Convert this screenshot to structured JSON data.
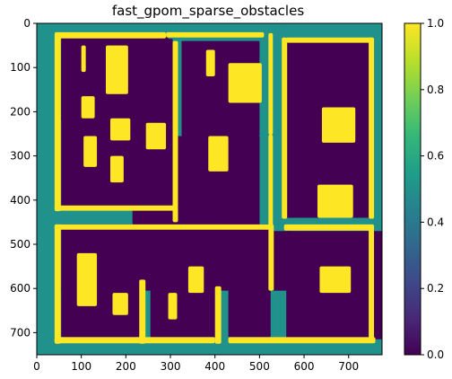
{
  "chart_data": {
    "type": "heatmap",
    "title": "fast_gpom_sparse_obstacles",
    "xlabel": "",
    "ylabel": "",
    "xlim": [
      0,
      775
    ],
    "ylim": [
      750,
      0
    ],
    "x_ticks": [
      0,
      100,
      200,
      300,
      400,
      500,
      600,
      700
    ],
    "y_ticks": [
      0,
      100,
      200,
      300,
      400,
      500,
      600,
      700
    ],
    "colormap": "viridis",
    "vmin": 0.0,
    "vmax": 1.0,
    "colorbar_ticks": [
      "0.0",
      "0.2",
      "0.4",
      "0.6",
      "0.8",
      "1.0"
    ],
    "value_levels": {
      "free": 0.0,
      "unknown": 0.5,
      "occupied": 1.0
    },
    "colors": {
      "free": "#440154",
      "unknown": "#21918c",
      "occupied": "#fde725"
    },
    "regions": {
      "free": [
        {
          "x": 55,
          "y": 22,
          "w": 240,
          "h": 195
        },
        {
          "x": 55,
          "y": 210,
          "w": 200,
          "h": 210
        },
        {
          "x": 215,
          "y": 210,
          "w": 90,
          "h": 245
        },
        {
          "x": 55,
          "y": 35,
          "w": 250,
          "h": 185
        },
        {
          "x": 325,
          "y": 40,
          "w": 175,
          "h": 215
        },
        {
          "x": 215,
          "y": 255,
          "w": 285,
          "h": 200
        },
        {
          "x": 325,
          "y": 255,
          "w": 175,
          "h": 200
        },
        {
          "x": 55,
          "y": 455,
          "w": 470,
          "h": 150
        },
        {
          "x": 55,
          "y": 595,
          "w": 180,
          "h": 115
        },
        {
          "x": 255,
          "y": 595,
          "w": 150,
          "h": 115
        },
        {
          "x": 430,
          "y": 455,
          "w": 95,
          "h": 255
        },
        {
          "x": 560,
          "y": 470,
          "w": 220,
          "h": 245
        },
        {
          "x": 520,
          "y": 470,
          "w": 55,
          "h": 135
        },
        {
          "x": 560,
          "y": 40,
          "w": 195,
          "h": 400
        }
      ],
      "occupied": [
        {
          "x": 40,
          "y": 20,
          "w": 250,
          "h": 14
        },
        {
          "x": 290,
          "y": 20,
          "w": 220,
          "h": 12
        },
        {
          "x": 520,
          "y": 22,
          "w": 10,
          "h": 230
        },
        {
          "x": 560,
          "y": 32,
          "w": 195,
          "h": 12
        },
        {
          "x": 550,
          "y": 32,
          "w": 12,
          "h": 410
        },
        {
          "x": 745,
          "y": 32,
          "w": 12,
          "h": 410
        },
        {
          "x": 305,
          "y": 40,
          "w": 12,
          "h": 410
        },
        {
          "x": 40,
          "y": 30,
          "w": 14,
          "h": 395
        },
        {
          "x": 40,
          "y": 412,
          "w": 275,
          "h": 12
        },
        {
          "x": 520,
          "y": 252,
          "w": 10,
          "h": 210
        },
        {
          "x": 40,
          "y": 455,
          "w": 490,
          "h": 12
        },
        {
          "x": 40,
          "y": 455,
          "w": 14,
          "h": 270
        },
        {
          "x": 40,
          "y": 710,
          "w": 360,
          "h": 14
        },
        {
          "x": 430,
          "y": 710,
          "w": 330,
          "h": 14
        },
        {
          "x": 555,
          "y": 455,
          "w": 200,
          "h": 14
        },
        {
          "x": 745,
          "y": 455,
          "w": 12,
          "h": 260
        },
        {
          "x": 400,
          "y": 595,
          "w": 14,
          "h": 130
        },
        {
          "x": 230,
          "y": 580,
          "w": 14,
          "h": 145
        },
        {
          "x": 520,
          "y": 455,
          "w": 12,
          "h": 150
        },
        {
          "x": 100,
          "y": 50,
          "w": 10,
          "h": 60
        },
        {
          "x": 155,
          "y": 50,
          "w": 50,
          "h": 110
        },
        {
          "x": 380,
          "y": 60,
          "w": 20,
          "h": 60
        },
        {
          "x": 430,
          "y": 90,
          "w": 75,
          "h": 90
        },
        {
          "x": 100,
          "y": 165,
          "w": 30,
          "h": 50
        },
        {
          "x": 165,
          "y": 215,
          "w": 45,
          "h": 50
        },
        {
          "x": 105,
          "y": 255,
          "w": 30,
          "h": 70
        },
        {
          "x": 245,
          "y": 225,
          "w": 45,
          "h": 60
        },
        {
          "x": 385,
          "y": 255,
          "w": 45,
          "h": 80
        },
        {
          "x": 165,
          "y": 300,
          "w": 30,
          "h": 60
        },
        {
          "x": 640,
          "y": 190,
          "w": 75,
          "h": 80
        },
        {
          "x": 630,
          "y": 365,
          "w": 80,
          "h": 75
        },
        {
          "x": 635,
          "y": 550,
          "w": 70,
          "h": 60
        },
        {
          "x": 340,
          "y": 550,
          "w": 35,
          "h": 60
        },
        {
          "x": 90,
          "y": 520,
          "w": 45,
          "h": 120
        },
        {
          "x": 170,
          "y": 610,
          "w": 35,
          "h": 50
        },
        {
          "x": 295,
          "y": 610,
          "w": 20,
          "h": 60
        }
      ],
      "unknown": [
        {
          "x": 40,
          "y": 0,
          "w": 735,
          "h": 20
        },
        {
          "x": 290,
          "y": 0,
          "w": 260,
          "h": 32
        },
        {
          "x": 0,
          "y": 0,
          "w": 40,
          "h": 750
        },
        {
          "x": 530,
          "y": 32,
          "w": 20,
          "h": 430
        },
        {
          "x": 755,
          "y": 20,
          "w": 20,
          "h": 700
        },
        {
          "x": 315,
          "y": 420,
          "w": 0,
          "h": 0
        },
        {
          "x": 40,
          "y": 424,
          "w": 275,
          "h": 31
        },
        {
          "x": 40,
          "y": 724,
          "w": 735,
          "h": 26
        },
        {
          "x": 244,
          "y": 595,
          "w": 156,
          "h": 115
        },
        {
          "x": 560,
          "y": 442,
          "w": 195,
          "h": 13
        }
      ]
    }
  }
}
